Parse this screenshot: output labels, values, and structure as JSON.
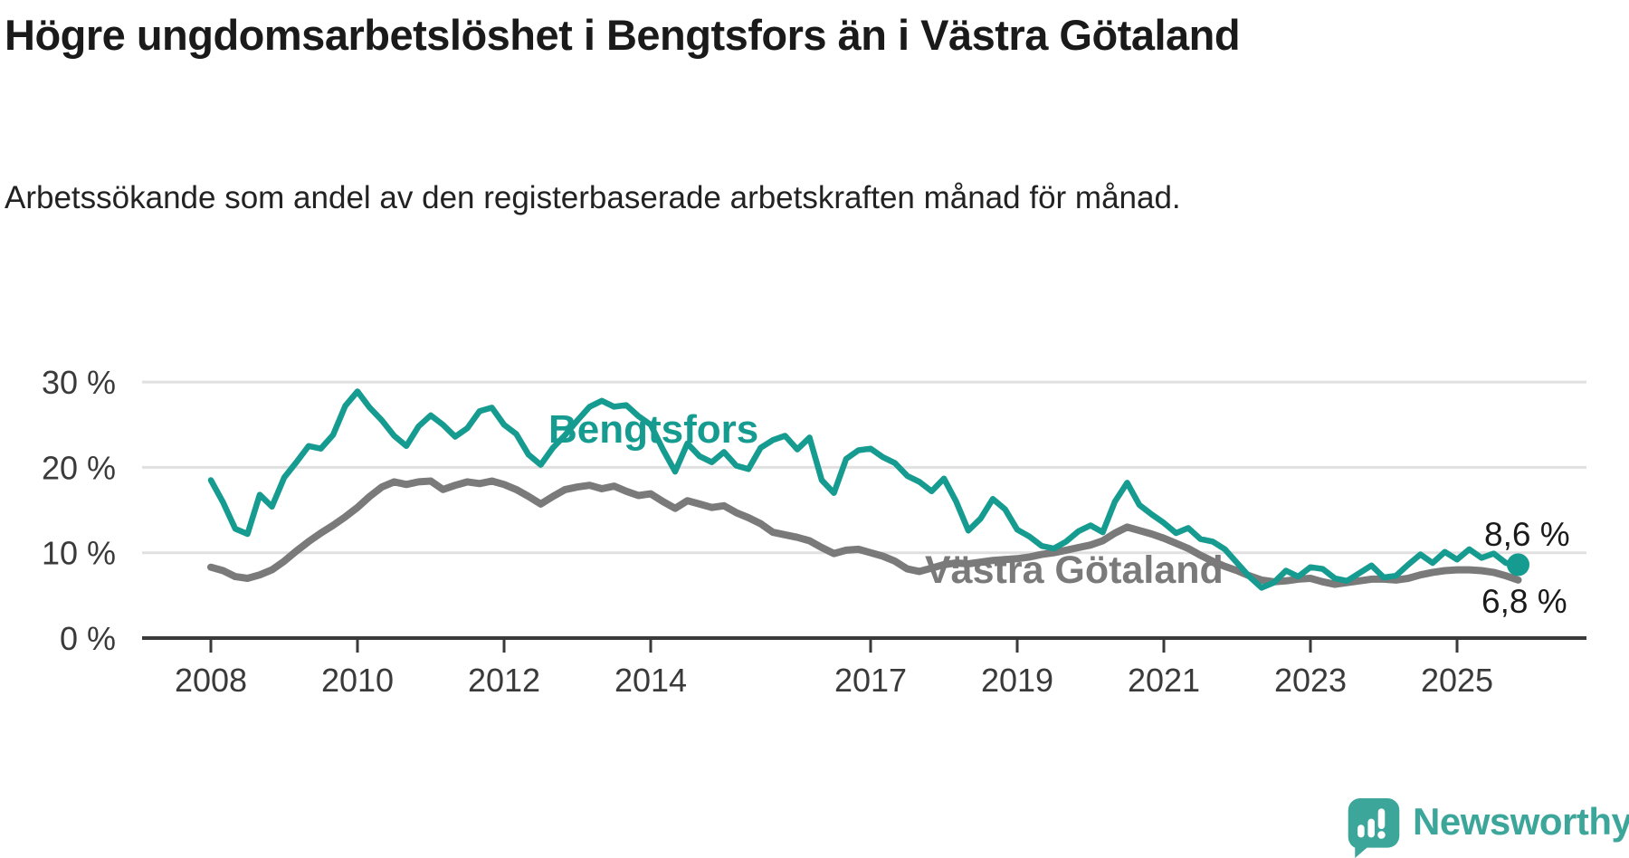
{
  "header": {
    "title": "Högre ungdomsarbetslöshet i Bengtsfors än i Västra Götaland",
    "subtitle": "Arbetssökande som andel av den registerbaserade arbetskraften månad för månad."
  },
  "branding": {
    "logo_text": "Newsworthy",
    "logo_icon": "speech-bubble-with-bar-chart-and-exclamation",
    "logo_color": "#3CA69B"
  },
  "colors": {
    "bengtsfors_line": "#169B90",
    "vastra_gotaland_line": "#7A7A7A",
    "gridline": "#E0E0E0",
    "axis": "#3A3A3A",
    "tick_text": "#3A3A3A",
    "heading_text": "#1A1A1A"
  },
  "chart_data": {
    "type": "line",
    "title": "Högre ungdomsarbetslöshet i Bengtsfors än i Västra Götaland",
    "subtitle": "Arbetssökande som andel av den registerbaserade arbetskraften månad för månad.",
    "unit": "%",
    "x_start": 2008.0,
    "x_step": 0.166667,
    "x_tick_years": [
      2008,
      2010,
      2012,
      2014,
      2017,
      2019,
      2021,
      2023,
      2025
    ],
    "y_ticks": [
      0,
      10,
      20,
      30
    ],
    "y_tick_suffix": " %",
    "ylim": [
      0,
      31.5
    ],
    "xlim": [
      2007.1,
      2026.8
    ],
    "grid": "horizontal-only",
    "legend_position": "inline-labels-on-lines",
    "series": [
      {
        "name": "Bengtsfors",
        "color": "#169B90",
        "end_label": "8,6 %",
        "end_value": 8.6,
        "end_marker": "dot",
        "values": [
          18.5,
          15.9,
          12.8,
          12.2,
          16.8,
          15.4,
          18.8,
          20.6,
          22.5,
          22.2,
          23.8,
          27.2,
          28.9,
          27.0,
          25.5,
          23.7,
          22.5,
          24.8,
          26.1,
          25.0,
          23.6,
          24.6,
          26.6,
          27.0,
          25.0,
          23.9,
          21.5,
          20.3,
          22.3,
          23.8,
          25.5,
          27.1,
          27.8,
          27.1,
          27.3,
          26.0,
          25.0,
          22.1,
          19.5,
          22.8,
          21.3,
          20.6,
          21.8,
          20.2,
          19.8,
          22.3,
          23.2,
          23.7,
          22.1,
          23.5,
          18.5,
          17.0,
          21.0,
          22.0,
          22.2,
          21.2,
          20.5,
          19.0,
          18.3,
          17.2,
          18.7,
          16.0,
          12.6,
          14.0,
          16.3,
          15.1,
          12.7,
          11.9,
          10.8,
          10.5,
          11.3,
          12.5,
          13.2,
          12.4,
          16.0,
          18.2,
          15.6,
          14.5,
          13.5,
          12.3,
          12.9,
          11.6,
          11.3,
          10.4,
          8.8,
          7.2,
          5.9,
          6.5,
          7.9,
          7.2,
          8.3,
          8.1,
          7.0,
          6.7,
          7.6,
          8.5,
          7.1,
          7.3,
          8.6,
          9.8,
          8.8,
          10.1,
          9.2,
          10.4,
          9.4,
          9.9,
          8.8,
          8.6
        ]
      },
      {
        "name": "Västra Götaland",
        "color": "#7A7A7A",
        "end_label": "6,8 %",
        "end_value": 6.8,
        "end_marker": "none",
        "values": [
          8.3,
          7.9,
          7.2,
          7.0,
          7.4,
          8.0,
          9.0,
          10.2,
          11.3,
          12.3,
          13.2,
          14.2,
          15.3,
          16.6,
          17.7,
          18.3,
          18.0,
          18.3,
          18.4,
          17.4,
          17.9,
          18.3,
          18.1,
          18.4,
          18.0,
          17.4,
          16.6,
          15.7,
          16.6,
          17.4,
          17.7,
          17.9,
          17.5,
          17.8,
          17.2,
          16.7,
          16.9,
          16.0,
          15.2,
          16.1,
          15.7,
          15.3,
          15.5,
          14.7,
          14.1,
          13.4,
          12.4,
          12.1,
          11.8,
          11.4,
          10.6,
          9.9,
          10.3,
          10.4,
          10.0,
          9.6,
          9.0,
          8.1,
          7.8,
          8.2,
          8.6,
          8.8,
          8.7,
          8.9,
          9.1,
          9.2,
          9.3,
          9.5,
          9.8,
          10.0,
          10.3,
          10.6,
          10.9,
          11.4,
          12.3,
          13.0,
          12.6,
          12.2,
          11.7,
          11.1,
          10.5,
          9.7,
          9.0,
          8.4,
          7.9,
          7.3,
          6.8,
          6.6,
          6.7,
          6.9,
          7.0,
          6.6,
          6.3,
          6.5,
          6.7,
          6.9,
          6.9,
          6.8,
          7.0,
          7.4,
          7.7,
          7.9,
          8.0,
          8.0,
          7.9,
          7.7,
          7.3,
          6.8
        ]
      }
    ]
  }
}
